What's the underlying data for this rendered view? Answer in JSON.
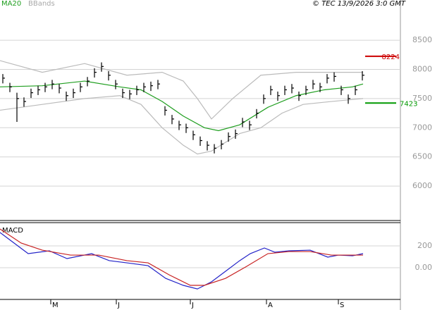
{
  "chart_data": [
    {
      "type": "ohlc",
      "legend": [
        {
          "name": "MA20",
          "color": "#1f9e1f"
        },
        {
          "name": "BBands",
          "color": "#a8a8a8"
        }
      ],
      "source": "© TEC 13/9/2026 3:0 GMT",
      "color": "#000000",
      "x": [
        0,
        1,
        2,
        3,
        4,
        5,
        6,
        7,
        8,
        9,
        10,
        11,
        12,
        13,
        14,
        15,
        16,
        17,
        18,
        19,
        20,
        21,
        22,
        23,
        24,
        25,
        26,
        27,
        28,
        29,
        30,
        31,
        32,
        33,
        34,
        35,
        36,
        37,
        38,
        39,
        40,
        41,
        42,
        43,
        44,
        45,
        46,
        47,
        48,
        49,
        50,
        51
      ],
      "high": [
        7920,
        7770,
        7600,
        7520,
        7670,
        7720,
        7770,
        7820,
        7750,
        7620,
        7670,
        7770,
        7870,
        8020,
        8120,
        7970,
        7820,
        7670,
        7650,
        7720,
        7770,
        7790,
        7820,
        7370,
        7220,
        7120,
        7070,
        6950,
        6850,
        6770,
        6720,
        6790,
        6920,
        6970,
        7170,
        7120,
        7320,
        7570,
        7720,
        7620,
        7720,
        7750,
        7620,
        7720,
        7820,
        7770,
        7920,
        7950,
        7720,
        7570,
        7720,
        7970
      ],
      "low": [
        7760,
        7610,
        7100,
        7360,
        7510,
        7560,
        7610,
        7660,
        7590,
        7460,
        7510,
        7610,
        7710,
        7860,
        7960,
        7810,
        7660,
        7510,
        7490,
        7560,
        7610,
        7630,
        7660,
        7210,
        7060,
        6960,
        6910,
        6790,
        6690,
        6610,
        6560,
        6630,
        6760,
        6810,
        7010,
        6960,
        7160,
        7410,
        7560,
        7460,
        7560,
        7590,
        7460,
        7560,
        7660,
        7610,
        7760,
        7790,
        7560,
        7410,
        7560,
        7810
      ],
      "close": [
        7850,
        7700,
        7500,
        7450,
        7600,
        7650,
        7700,
        7750,
        7680,
        7550,
        7600,
        7700,
        7800,
        7950,
        8050,
        7900,
        7750,
        7600,
        7580,
        7650,
        7700,
        7720,
        7750,
        7300,
        7150,
        7050,
        7000,
        6880,
        6780,
        6700,
        6650,
        6720,
        6850,
        6900,
        7100,
        7050,
        7250,
        7500,
        7650,
        7550,
        7650,
        7680,
        7550,
        7650,
        7750,
        7700,
        7850,
        7880,
        7650,
        7500,
        7650,
        7900
      ],
      "lines": [
        {
          "color": "#1f9e1f",
          "x": [
            -0.4,
            5.6,
            11.6,
            16.6,
            19.6,
            22.6,
            25.6,
            28.6,
            30.6,
            33.6,
            37.6,
            41.6,
            45.6,
            49.6,
            51.1
          ],
          "values": [
            7700,
            7720,
            7800,
            7700,
            7650,
            7450,
            7200,
            7000,
            6950,
            7050,
            7350,
            7550,
            7650,
            7700,
            7750
          ]
        },
        {
          "color": "#bbbbbb",
          "x": [
            -0.4,
            5.6,
            11.6,
            17.6,
            22.6,
            25.6,
            27.6,
            29.6,
            32.6,
            36.6,
            41.6,
            46.6,
            51.1
          ],
          "values": [
            8150,
            7950,
            8100,
            7900,
            7950,
            7800,
            7500,
            7150,
            7500,
            7900,
            7950,
            7950,
            7950
          ]
        },
        {
          "color": "#bbbbbb",
          "x": [
            -0.4,
            5.6,
            11.6,
            16.6,
            19.6,
            22.6,
            25.6,
            27.6,
            29.6,
            33.6,
            36.6,
            39.6,
            42.6,
            46.6,
            51.1
          ],
          "values": [
            7300,
            7400,
            7500,
            7550,
            7400,
            7000,
            6700,
            6550,
            6600,
            6900,
            7000,
            7250,
            7400,
            7450,
            7500
          ]
        }
      ],
      "levels": [
        {
          "value": 8224,
          "color": "#cc0000"
        },
        {
          "value": 7423,
          "color": "#009900"
        }
      ],
      "xlim": [
        -0.4,
        56.4
      ],
      "xticks": [
        {
          "value": 6.8,
          "label": "M"
        },
        {
          "value": 16.1,
          "label": "J"
        },
        {
          "value": 26.6,
          "label": "J"
        },
        {
          "value": 37.4,
          "label": "A"
        },
        {
          "value": 47.6,
          "label": "S"
        }
      ],
      "ylim": [
        5410,
        9020
      ],
      "yticks": [
        6000,
        6500,
        7000,
        7500,
        8000,
        8500
      ],
      "grid": true
    },
    {
      "type": "line",
      "title": "MACD",
      "series": [
        {
          "color": "#2323c8",
          "x": [
            -0.4,
            1.6,
            3.6,
            6.6,
            9.1,
            12.6,
            15.1,
            17.6,
            20.6,
            23.1,
            25.6,
            27.6,
            29.6,
            31.6,
            33.6,
            35.1,
            37.1,
            38.6,
            40.6,
            43.6,
            46.1,
            47.6,
            49.6,
            51.1
          ],
          "values": [
            323,
            226,
            129,
            155,
            84,
            129,
            65,
            45,
            19,
            -97,
            -161,
            -194,
            -129,
            -32,
            65,
            129,
            181,
            142,
            155,
            161,
            97,
            116,
            110,
            129
          ]
        },
        {
          "color": "#c82323",
          "x": [
            -0.4,
            2.6,
            5.6,
            9.6,
            13.6,
            17.6,
            20.6,
            23.6,
            26.6,
            28.6,
            31.6,
            34.6,
            37.6,
            40.6,
            43.6,
            46.6,
            51.1
          ],
          "values": [
            355,
            226,
            161,
            116,
            116,
            65,
            45,
            -65,
            -161,
            -161,
            -97,
            13,
            129,
            148,
            148,
            116,
            116
          ]
        }
      ],
      "xlim": [
        -0.4,
        56.4
      ],
      "ylim": [
        -290,
        400
      ],
      "yticks": [
        {
          "value": 0,
          "label": "0.00"
        },
        200
      ],
      "grid": true
    }
  ]
}
